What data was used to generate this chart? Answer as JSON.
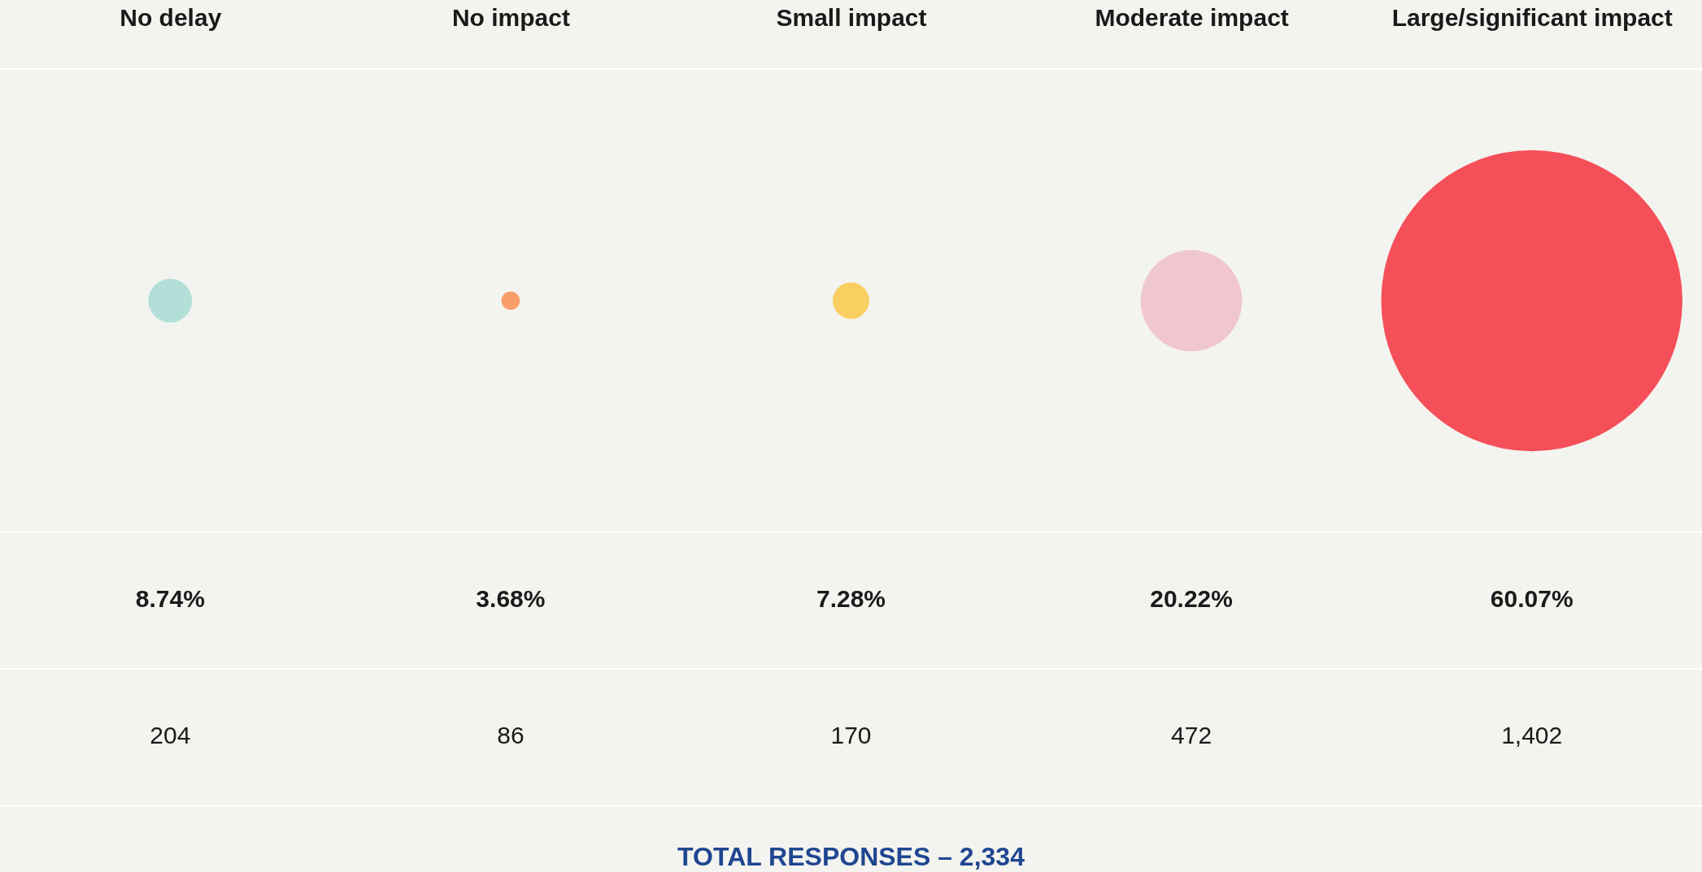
{
  "chart_data": {
    "type": "other",
    "categories": [
      "No delay",
      "No impact",
      "Small impact",
      "Moderate impact",
      "Large/significant impact"
    ],
    "values": [
      8.74,
      3.68,
      7.28,
      20.22,
      60.07
    ],
    "value_labels": [
      "8.74%",
      "3.68%",
      "7.28%",
      "20.22%",
      "60.07%"
    ],
    "colors": [
      "#b2e0d8",
      "#f99d6a",
      "#f8cf60",
      "#f0c6d0",
      "#f5505a"
    ],
    "annotations": [
      {
        "text": "204",
        "x": "No delay"
      },
      {
        "text": "86",
        "x": "No impact"
      },
      {
        "text": "170",
        "x": "Small impact"
      },
      {
        "text": "472",
        "x": "Moderate impact"
      },
      {
        "text": "1,402",
        "x": "Large/significant impact"
      },
      "TOTAL RESPONSES – 2,334"
    ]
  }
}
